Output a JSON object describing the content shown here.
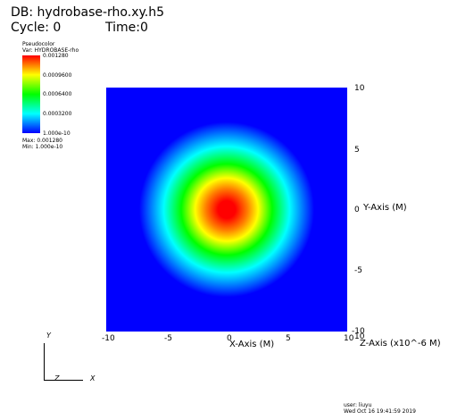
{
  "header": {
    "db": "DB: hydrobase-rho.xy.h5",
    "cycle": "Cycle: 0",
    "time": "Time:0"
  },
  "legend": {
    "type": "Pseudocolor",
    "var": "Var: HYDROBASE-rho",
    "ticks": [
      "0.001280",
      "0.0009600",
      "0.0006400",
      "0.0003200",
      "1.000e-10"
    ],
    "max": "Max: 0.001280",
    "min": "Min: 1.000e-10",
    "colormap": [
      "#ff0000",
      "#ffff00",
      "#00ff00",
      "#00ffff",
      "#0000ff"
    ]
  },
  "axes": {
    "x_label": "X-Axis (M)",
    "y_label": "Y-Axis (M)",
    "z_label": "Z-Axis (x10^-6 M)",
    "x_ticks": [
      "-10",
      "-5",
      "0",
      "5",
      "10"
    ],
    "y_ticks": [
      "10",
      "5",
      "0",
      "-5",
      "-10"
    ],
    "z_tick": "10"
  },
  "triad": {
    "y": "Y",
    "z": "Z",
    "x": "X"
  },
  "footer": {
    "user": "user: liuyu",
    "date": "Wed Oct 16 19:41:59 2019"
  },
  "chart_data": {
    "type": "heatmap",
    "title": "DB: hydrobase-rho.xy.h5",
    "variable": "HYDROBASE-rho",
    "xlabel": "X-Axis (M)",
    "ylabel": "Y-Axis (M)",
    "xlim": [
      -10,
      10
    ],
    "ylim": [
      -10,
      10
    ],
    "value_range": [
      1e-10,
      0.00128
    ],
    "peak_center": [
      0,
      0
    ],
    "peak_value": 0.00128,
    "colors": [
      "#0000ff",
      "#00ffff",
      "#00ff00",
      "#ffff00",
      "#ff0000"
    ]
  }
}
